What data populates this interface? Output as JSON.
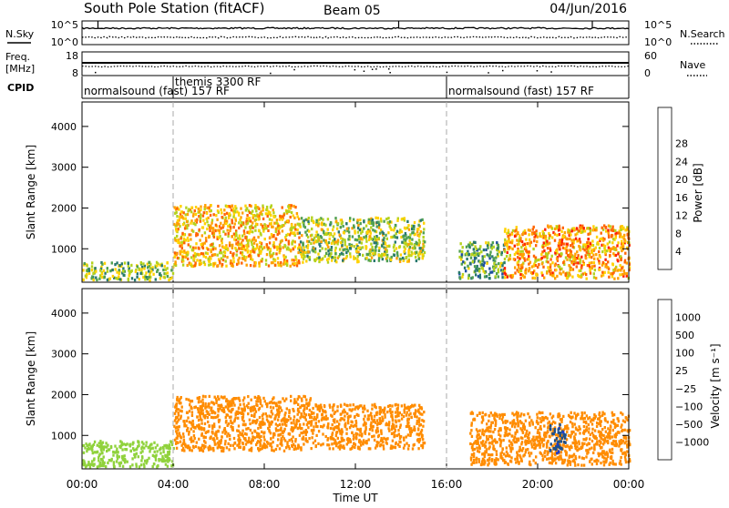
{
  "header": {
    "station": "South Pole Station (fitACF)",
    "beam": "Beam 05",
    "date": "04/Jun/2016"
  },
  "side_labels": {
    "nsky": "N.Sky",
    "freq_line1": "Freq.",
    "freq_line2": "[MHz]",
    "cpid": "CPID",
    "nsearch": "N.Search",
    "nave": "Nave"
  },
  "colors": {
    "power": [
      "#1414e6",
      "#1e50a0",
      "#28786e",
      "#50a050",
      "#b4d21e",
      "#ffd200",
      "#ffa000",
      "#ff6400",
      "#ff1e00"
    ],
    "velocity": [
      "#ff0000",
      "#ff5a00",
      "#ff8c00",
      "#ffc800",
      "#c8c8c8",
      "#90d23c",
      "#40a050",
      "#1e508c",
      "#1e3cc8"
    ]
  },
  "chart_data": [
    {
      "type": "line",
      "panel": "noise",
      "x_axis": {
        "range": [
          0,
          24
        ]
      },
      "left_ticks": [
        "10^5",
        "10^0"
      ],
      "right_ticks": [
        "10^5",
        "10^0"
      ],
      "series": [
        {
          "name": "N.Sky",
          "style": "solid"
        },
        {
          "name": "N.Search",
          "style": "dotted"
        }
      ]
    },
    {
      "type": "line",
      "panel": "frequency_nave",
      "x_axis": {
        "range": [
          0,
          24
        ]
      },
      "left_ticks": [
        "18",
        "8"
      ],
      "right_ticks": [
        "60",
        "0"
      ],
      "series": [
        {
          "name": "Freq.",
          "style": "solid",
          "value": 13
        },
        {
          "name": "Nave",
          "style": "dotted",
          "value": 30
        }
      ]
    },
    {
      "type": "table",
      "panel": "cpid",
      "segments": [
        {
          "label": "normalsound (fast) 157 RF",
          "start": 0,
          "end": 4
        },
        {
          "label": "themis 3300 RF",
          "start": 4,
          "end": 16
        },
        {
          "label": "normalsound (fast) 157 RF",
          "start": 16,
          "end": 24
        }
      ]
    },
    {
      "type": "heatmap",
      "panel": "power",
      "ylabel": "Slant Range [km]",
      "x_range": [
        0,
        24
      ],
      "ylim": [
        180,
        4600
      ],
      "y_ticks": [
        "1000",
        "2000",
        "3000",
        "4000"
      ],
      "colorbar": {
        "label": "Power [dB]",
        "range": [
          0,
          32
        ],
        "ticks": [
          "4",
          "8",
          "12",
          "16",
          "20",
          "24",
          "28"
        ]
      },
      "echo_regions": [
        {
          "t_start": 0.0,
          "t_end": 4.0,
          "range_low": 260,
          "range_high": 700,
          "level": 14
        },
        {
          "t_start": 4.0,
          "t_end": 9.5,
          "range_low": 600,
          "range_high": 2100,
          "level": 22
        },
        {
          "t_start": 9.5,
          "t_end": 15.0,
          "range_low": 700,
          "range_high": 1800,
          "level": 16
        },
        {
          "t_start": 16.5,
          "t_end": 18.5,
          "range_low": 300,
          "range_high": 1200,
          "level": 12
        },
        {
          "t_start": 18.5,
          "t_end": 24.0,
          "range_low": 300,
          "range_high": 1600,
          "level": 24
        }
      ]
    },
    {
      "type": "heatmap",
      "panel": "velocity",
      "ylabel": "Slant Range [km]",
      "xlabel": "Time UT",
      "x_range": [
        0,
        24
      ],
      "ylim": [
        180,
        4600
      ],
      "y_ticks": [
        "1000",
        "2000",
        "3000",
        "4000"
      ],
      "x_ticks": [
        "00:00",
        "04:00",
        "08:00",
        "12:00",
        "16:00",
        "20:00",
        "00:00"
      ],
      "colorbar": {
        "label": "Velocity [m s⁻¹]",
        "ticks": [
          "1000",
          "500",
          "100",
          "25",
          "−25",
          "−100",
          "−500",
          "−1000"
        ]
      },
      "echo_regions": [
        {
          "t_start": 0.0,
          "t_end": 4.0,
          "range_low": 260,
          "range_high": 900,
          "velocity": 50
        },
        {
          "t_start": 4.0,
          "t_end": 10.0,
          "range_low": 650,
          "range_high": 2000,
          "velocity": -300
        },
        {
          "t_start": 10.0,
          "t_end": 15.0,
          "range_low": 700,
          "range_high": 1800,
          "velocity": -150
        },
        {
          "t_start": 17.0,
          "t_end": 24.0,
          "range_low": 300,
          "range_high": 1600,
          "velocity": -200
        },
        {
          "t_start": 20.5,
          "t_end": 21.2,
          "range_low": 600,
          "range_high": 1300,
          "velocity": 800
        }
      ]
    }
  ]
}
